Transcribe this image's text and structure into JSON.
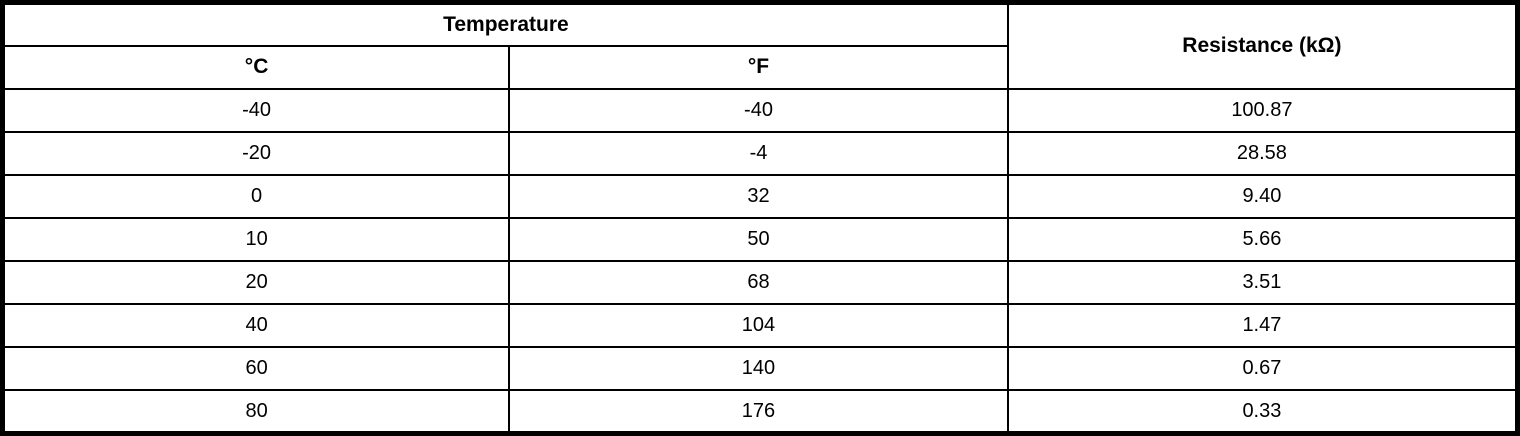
{
  "header": {
    "temperature_group": "Temperature",
    "celsius": "°C",
    "fahrenheit": "°F",
    "resistance": "Resistance (kΩ)"
  },
  "rows": [
    {
      "c": "-40",
      "f": "-40",
      "r": "100.87"
    },
    {
      "c": "-20",
      "f": "-4",
      "r": "28.58"
    },
    {
      "c": "0",
      "f": "32",
      "r": "9.40"
    },
    {
      "c": "10",
      "f": "50",
      "r": "5.66"
    },
    {
      "c": "20",
      "f": "68",
      "r": "3.51"
    },
    {
      "c": "40",
      "f": "104",
      "r": "1.47"
    },
    {
      "c": "60",
      "f": "140",
      "r": "0.67"
    },
    {
      "c": "80",
      "f": "176",
      "r": "0.33"
    }
  ],
  "colors": {
    "border": "#000000",
    "background": "#ffffff",
    "text": "#000000"
  },
  "chart_data": {
    "type": "table",
    "columns": [
      "Temperature °C",
      "Temperature °F",
      "Resistance (kΩ)"
    ],
    "temperature_c": [
      -40,
      -20,
      0,
      10,
      20,
      40,
      60,
      80
    ],
    "temperature_f": [
      -40,
      -4,
      32,
      50,
      68,
      104,
      140,
      176
    ],
    "resistance_kohm": [
      100.87,
      28.58,
      9.4,
      5.66,
      3.51,
      1.47,
      0.67,
      0.33
    ]
  }
}
